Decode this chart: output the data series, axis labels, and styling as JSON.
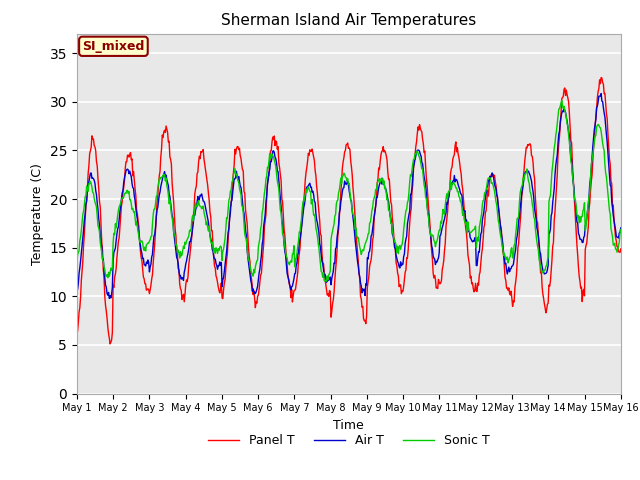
{
  "title": "Sherman Island Air Temperatures",
  "xlabel": "Time",
  "ylabel": "Temperature (C)",
  "ylim": [
    0,
    37
  ],
  "yticks": [
    0,
    5,
    10,
    15,
    20,
    25,
    30,
    35
  ],
  "fig_bg_color": "#ffffff",
  "plot_bg_color": "#e8e8e8",
  "annotation_text": "SI_mixed",
  "annotation_bg": "#ffffcc",
  "annotation_border": "#8b0000",
  "annotation_text_color": "#8b0000",
  "line_colors": {
    "panel": "#ff0000",
    "air": "#0000cc",
    "sonic": "#00cc00"
  },
  "legend_labels": [
    "Panel T",
    "Air T",
    "Sonic T"
  ],
  "xtick_labels": [
    "May 1",
    "May 2",
    "May 3",
    "May 4",
    "May 5",
    "May 6",
    "May 7",
    "May 8",
    "May 9",
    "May 10",
    "May 11",
    "May 12",
    "May 13",
    "May 14",
    "May 15",
    "May 16"
  ],
  "n_days": 15,
  "panel_peaks": [
    26.2,
    24.5,
    27.2,
    24.7,
    25.2,
    26.5,
    25.0,
    25.7,
    25.2,
    27.5,
    25.3,
    22.5,
    25.8,
    31.5,
    32.3
  ],
  "panel_troughs": [
    5.5,
    10.8,
    9.8,
    10.8,
    9.4,
    10.0,
    10.2,
    7.7,
    10.8,
    10.7,
    11.0,
    10.2,
    8.5,
    10.2,
    14.5
  ],
  "air_peaks": [
    22.5,
    23.0,
    22.5,
    20.2,
    22.5,
    24.8,
    21.5,
    21.8,
    21.8,
    25.0,
    22.0,
    22.5,
    23.0,
    29.2,
    30.5
  ],
  "air_troughs": [
    9.8,
    13.2,
    11.8,
    13.0,
    10.2,
    10.8,
    11.5,
    10.5,
    13.2,
    13.5,
    15.8,
    12.5,
    12.3,
    15.5,
    16.0
  ],
  "sonic_peaks": [
    21.5,
    20.7,
    22.5,
    19.5,
    22.5,
    24.5,
    21.0,
    22.5,
    22.2,
    24.8,
    21.5,
    22.0,
    22.5,
    30.0,
    27.5
  ],
  "sonic_troughs": [
    12.0,
    15.0,
    14.3,
    14.5,
    12.3,
    13.3,
    11.5,
    14.8,
    14.8,
    15.5,
    16.5,
    13.8,
    12.5,
    17.8,
    14.8
  ]
}
